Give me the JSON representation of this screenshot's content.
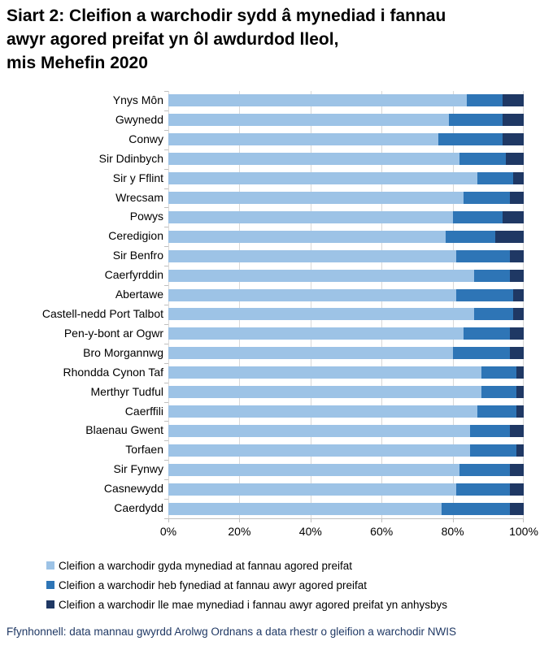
{
  "title": {
    "line1": "Siart 2: Cleifion a warchodir sydd â mynediad i fannau",
    "line2": "awyr agored preifat yn ôl awdurdod lleol,",
    "line3": "mis Mehefin 2020"
  },
  "chart_data": {
    "type": "bar",
    "orientation": "horizontal",
    "stacked": true,
    "units": "percent",
    "grid": true,
    "legend_position": "bottom",
    "x_axis": {
      "min": 0,
      "max": 100,
      "tick_values": [
        0,
        20,
        40,
        60,
        80,
        100
      ],
      "tick_labels": [
        "0%",
        "20%",
        "40%",
        "60%",
        "80%",
        "100%"
      ]
    },
    "categories": [
      "Ynys Môn",
      "Gwynedd",
      "Conwy",
      "Sir Ddinbych",
      "Sir y Fflint",
      "Wrecsam",
      "Powys",
      "Ceredigion",
      "Sir Benfro",
      "Caerfyrddin",
      "Abertawe",
      "Castell-nedd Port Talbot",
      "Pen-y-bont ar Ogwr",
      "Bro Morgannwg",
      "Rhondda Cynon Taf",
      "Merthyr Tudful",
      "Caerffili",
      "Blaenau Gwent",
      "Torfaen",
      "Sir Fynwy",
      "Casnewydd",
      "Caerdydd"
    ],
    "series": [
      {
        "name": "Cleifion a warchodir gyda mynediad at fannau agored preifat",
        "color": "#9dc3e6",
        "values": [
          84,
          79,
          76,
          82,
          87,
          83,
          80,
          78,
          81,
          86,
          81,
          86,
          83,
          80,
          88,
          88,
          87,
          85,
          85,
          82,
          81,
          77
        ]
      },
      {
        "name": "Cleifion a warchodir heb fynediad at fannau awyr agored preifat",
        "color": "#2e75b6",
        "values": [
          10,
          15,
          18,
          13,
          10,
          13,
          14,
          14,
          15,
          10,
          16,
          11,
          13,
          16,
          10,
          10,
          11,
          11,
          13,
          14,
          15,
          19
        ]
      },
      {
        "name": "Cleifion a warchodir lle mae mynediad i fannau awyr agored preifat yn anhysbys",
        "color": "#1f3864",
        "values": [
          6,
          6,
          6,
          5,
          3,
          4,
          6,
          8,
          4,
          4,
          3,
          3,
          4,
          4,
          2,
          2,
          2,
          4,
          2,
          4,
          4,
          4
        ]
      }
    ]
  },
  "colors": {
    "gridline": "#d9d9d9",
    "axis": "#bfbfbf",
    "footer_text": "#1f3864"
  },
  "footer": {
    "source": "Ffynhonnell: data mannau gwyrdd Arolwg Ordnans a data rhestr o gleifion a warchodir NWIS"
  }
}
